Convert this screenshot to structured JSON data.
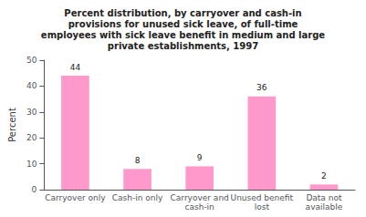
{
  "chart_data": {
    "type": "bar",
    "title": "Percent distribution, by carryover and cash-in\nprovisions for unused sick leave, of full-time\nemployees with sick leave benefit in medium and large\nprivate establishments, 1997",
    "categories": [
      "Carryover only",
      "Cash-in only",
      "Carryover and\ncash-in",
      "Unused benefit\nlost",
      "Data not\navailable"
    ],
    "values": [
      44,
      8,
      9,
      36,
      2
    ],
    "color": "#FF99CC",
    "ylabel": "Percent",
    "ylim": [
      0,
      50
    ],
    "yticks": [
      0,
      10,
      20,
      30,
      40,
      50
    ],
    "grid": false,
    "data_labels": true
  }
}
